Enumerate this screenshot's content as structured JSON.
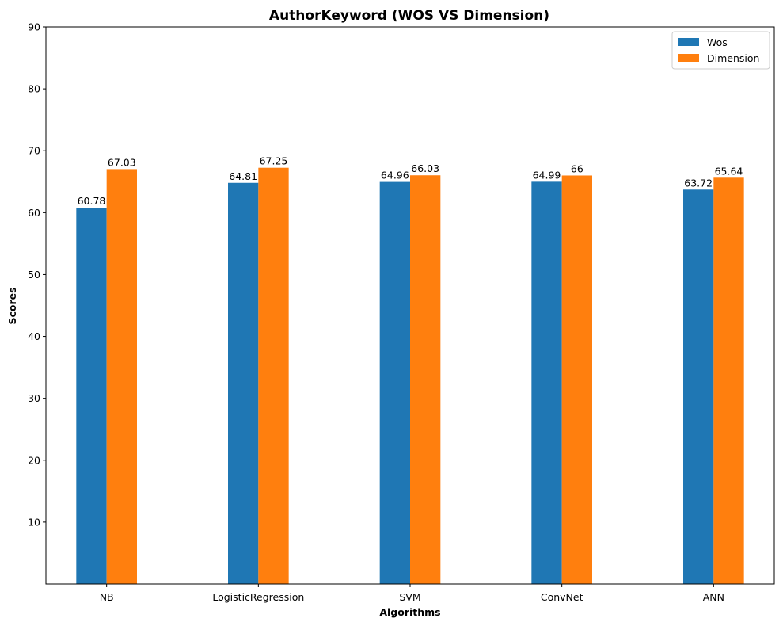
{
  "chart_data": {
    "type": "bar",
    "title": "AuthorKeyword (WOS VS Dimension)",
    "xlabel": "Algorithms",
    "ylabel": "Scores",
    "categories": [
      "NB",
      "LogisticRegression",
      "SVM",
      "ConvNet",
      "ANN"
    ],
    "series": [
      {
        "name": "Wos",
        "color": "#1f77b4",
        "values": [
          60.78,
          64.81,
          64.96,
          64.99,
          63.72
        ],
        "labels": [
          "60.78",
          "64.81",
          "64.96",
          "64.99",
          "63.72"
        ]
      },
      {
        "name": "Dimension",
        "color": "#ff7f0e",
        "values": [
          67.03,
          67.25,
          66.03,
          66.0,
          65.64
        ],
        "labels": [
          "67.03",
          "67.25",
          "66.03",
          "66",
          "65.64"
        ]
      }
    ],
    "ylim": [
      0,
      90
    ],
    "yticks": [
      10,
      20,
      30,
      40,
      50,
      60,
      70,
      80,
      90
    ],
    "grid": false,
    "legend_position": "top-right"
  }
}
